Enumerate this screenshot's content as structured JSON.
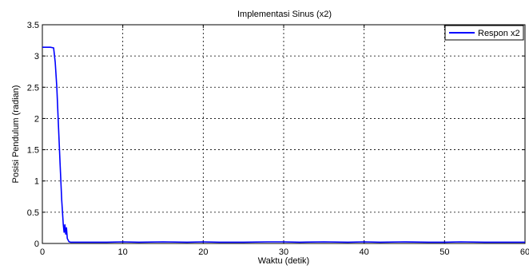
{
  "chart_data": {
    "type": "line",
    "title": "Implementasi Sinus (x2)",
    "xlabel": "Waktu (detik)",
    "ylabel": "Posisi Pendulum (radian)",
    "xlim": [
      0,
      60
    ],
    "ylim": [
      0,
      3.5
    ],
    "xticks": [
      0,
      10,
      20,
      30,
      40,
      50,
      60
    ],
    "yticks": [
      0,
      0.5,
      1,
      1.5,
      2,
      2.5,
      3,
      3.5
    ],
    "xtick_labels": [
      "0",
      "10",
      "20",
      "30",
      "40",
      "50",
      "60"
    ],
    "ytick_labels": [
      "0",
      "0.5",
      "1",
      "1.5",
      "2",
      "2.5",
      "3",
      "3.5"
    ],
    "grid": true,
    "legend_position": "top-right",
    "series": [
      {
        "name": "Respon x2",
        "color": "#0000ff",
        "x": [
          0,
          0.5,
          1,
          1.4,
          1.6,
          1.8,
          2.0,
          2.2,
          2.4,
          2.6,
          2.7,
          2.8,
          2.9,
          3.0,
          3.1,
          3.3,
          3.5,
          4,
          5,
          6,
          8,
          10,
          12,
          15,
          18,
          20,
          22,
          25,
          28,
          30,
          32,
          35,
          38,
          40,
          42,
          45,
          48,
          50,
          52,
          55,
          58,
          60
        ],
        "y": [
          3.14,
          3.14,
          3.14,
          3.13,
          2.9,
          2.5,
          1.9,
          1.3,
          0.7,
          0.3,
          0.18,
          0.3,
          0.15,
          0.25,
          0.08,
          0.03,
          0.02,
          0.02,
          0.02,
          0.02,
          0.02,
          0.025,
          0.02,
          0.025,
          0.02,
          0.025,
          0.02,
          0.02,
          0.025,
          0.025,
          0.02,
          0.025,
          0.02,
          0.025,
          0.02,
          0.025,
          0.02,
          0.02,
          0.025,
          0.02,
          0.02,
          0.02
        ]
      }
    ]
  }
}
